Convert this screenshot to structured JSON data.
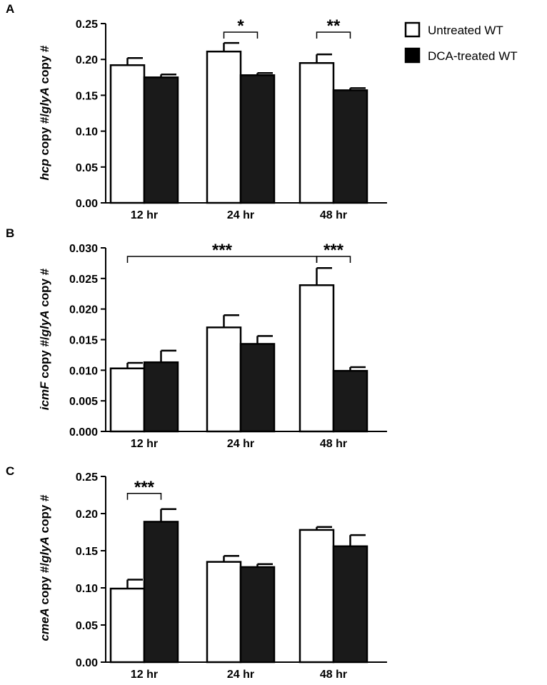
{
  "legend": {
    "items": [
      {
        "label": "Untreated WT",
        "color": "#ffffff"
      },
      {
        "label": "DCA-treated WT",
        "color": "#000000"
      }
    ]
  },
  "chart_data": [
    {
      "panel": "A",
      "type": "bar",
      "ylabel": {
        "gene": "hcp",
        "mid": " copy #/",
        "gene2": "glyA",
        "end": " copy #"
      },
      "categories": [
        "12 hr",
        "24 hr",
        "48 hr"
      ],
      "yticks": [
        "0.00",
        "0.05",
        "0.10",
        "0.15",
        "0.20",
        "0.25"
      ],
      "ylim": [
        0,
        0.25
      ],
      "series": [
        {
          "name": "Untreated WT",
          "values": [
            0.192,
            0.211,
            0.195
          ],
          "errors": [
            0.01,
            0.012,
            0.012
          ]
        },
        {
          "name": "DCA-treated WT",
          "values": [
            0.175,
            0.178,
            0.157
          ],
          "errors": [
            0.004,
            0.003,
            0.003
          ]
        }
      ],
      "significance": [
        {
          "label": "*",
          "from": {
            "cat": 1,
            "series": 0
          },
          "to": {
            "cat": 1,
            "series": 1
          }
        },
        {
          "label": "**",
          "from": {
            "cat": 2,
            "series": 0
          },
          "to": {
            "cat": 2,
            "series": 1
          }
        }
      ]
    },
    {
      "panel": "B",
      "type": "bar",
      "ylabel": {
        "gene": "icmF",
        "mid": " copy #/",
        "gene2": "glyA",
        "end": " copy #"
      },
      "categories": [
        "12 hr",
        "24 hr",
        "48 hr"
      ],
      "yticks": [
        "0.000",
        "0.005",
        "0.010",
        "0.015",
        "0.020",
        "0.025",
        "0.030"
      ],
      "ylim": [
        0,
        0.03
      ],
      "series": [
        {
          "name": "Untreated WT",
          "values": [
            0.0103,
            0.017,
            0.0239
          ],
          "errors": [
            0.0009,
            0.002,
            0.0028
          ]
        },
        {
          "name": "DCA-treated WT",
          "values": [
            0.0113,
            0.0143,
            0.0099
          ],
          "errors": [
            0.0019,
            0.0013,
            0.0006
          ]
        }
      ],
      "significance": [
        {
          "label": "***",
          "from": {
            "cat": 0,
            "series": 0
          },
          "to": {
            "cat": 2,
            "series": 0
          }
        },
        {
          "label": "***",
          "from": {
            "cat": 2,
            "series": 0
          },
          "to": {
            "cat": 2,
            "series": 1
          }
        }
      ]
    },
    {
      "panel": "C",
      "type": "bar",
      "ylabel": {
        "gene": "cmeA",
        "mid": " copy #/",
        "gene2": "glyA",
        "end": " copy #"
      },
      "categories": [
        "12 hr",
        "24 hr",
        "48 hr"
      ],
      "yticks": [
        "0.00",
        "0.05",
        "0.10",
        "0.15",
        "0.20",
        "0.25"
      ],
      "ylim": [
        0,
        0.25
      ],
      "series": [
        {
          "name": "Untreated WT",
          "values": [
            0.099,
            0.135,
            0.178
          ],
          "errors": [
            0.012,
            0.008,
            0.004
          ]
        },
        {
          "name": "DCA-treated WT",
          "values": [
            0.189,
            0.128,
            0.156
          ],
          "errors": [
            0.017,
            0.004,
            0.015
          ]
        }
      ],
      "significance": [
        {
          "label": "***",
          "from": {
            "cat": 0,
            "series": 0
          },
          "to": {
            "cat": 0,
            "series": 1
          }
        }
      ]
    }
  ]
}
